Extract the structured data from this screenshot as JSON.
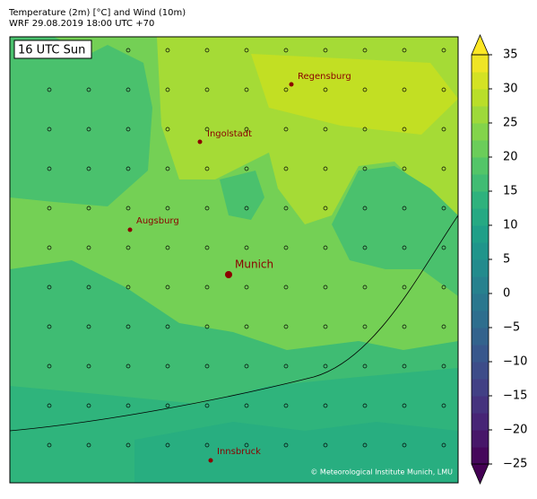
{
  "header": {
    "title": "Temperature (2m) [°C] and Wind (10m)",
    "subtitle": "WRF 29.08.2019 18:00 UTC +70"
  },
  "map": {
    "time_label": "16 UTC Sun",
    "cities": [
      {
        "name": "Regensburg"
      },
      {
        "name": "Ingolstadt"
      },
      {
        "name": "Augsburg"
      },
      {
        "name": "Munich"
      },
      {
        "name": "Innsbruck"
      }
    ],
    "copyright": "© Meteorological Institute Munich, LMU"
  },
  "colorbar": {
    "lim": [
      -25,
      35
    ],
    "ticks": [
      35,
      30,
      25,
      20,
      15,
      10,
      5,
      0,
      {
        "value": -5,
        "label": "−5"
      },
      {
        "value": -10,
        "label": "−10"
      },
      {
        "value": -15,
        "label": "−15"
      },
      {
        "value": -20,
        "label": "−20"
      },
      {
        "value": -25,
        "label": "−25"
      }
    ]
  }
}
